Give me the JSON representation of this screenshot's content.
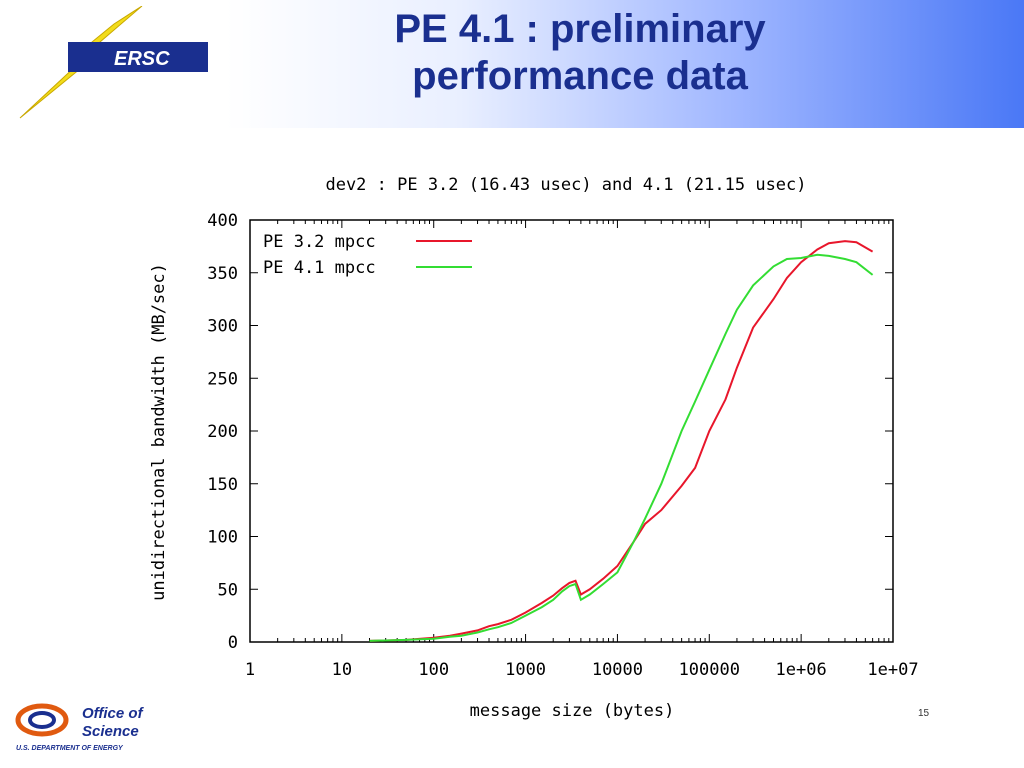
{
  "slide": {
    "title_line1": "PE 4.1 : preliminary",
    "title_line2": "performance data",
    "nersc_logo_text": "ERSC",
    "office_logo_line1": "Office of",
    "office_logo_line2": "Science",
    "office_logo_line3": "U.S. DEPARTMENT OF ENERGY",
    "page_number": "15"
  },
  "colors": {
    "title": "#1a2f8f",
    "pe32": "#e8162b",
    "pe41": "#33dd33"
  },
  "chart_data": {
    "type": "line",
    "title": "dev2 : PE 3.2 (16.43 usec) and 4.1 (21.15 usec)",
    "xlabel": "message size (bytes)",
    "ylabel": "unidirectional bandwidth (MB/sec)",
    "xscale": "log",
    "xlim": [
      1,
      10000000
    ],
    "ylim": [
      0,
      400
    ],
    "xticks": [
      1,
      10,
      100,
      1000,
      10000,
      100000,
      1000000,
      10000000
    ],
    "xtick_labels": [
      "1",
      "10",
      "100",
      "1000",
      "10000",
      "100000",
      "1e+06",
      "1e+07"
    ],
    "yticks": [
      0,
      50,
      100,
      150,
      200,
      250,
      300,
      350,
      400
    ],
    "ytick_labels": [
      "0",
      "50",
      "100",
      "150",
      "200",
      "250",
      "300",
      "350",
      "400"
    ],
    "legend_position": "top-left",
    "grid": false,
    "series": [
      {
        "name": "PE 3.2 mpcc",
        "color": "#e8162b",
        "x": [
          20,
          50,
          100,
          150,
          200,
          300,
          400,
          500,
          700,
          1000,
          1500,
          2000,
          2500,
          3000,
          3500,
          4000,
          5000,
          7000,
          10000,
          15000,
          20000,
          30000,
          50000,
          70000,
          100000,
          150000,
          200000,
          300000,
          500000,
          700000,
          1000000,
          1500000,
          2000000,
          3000000,
          4000000,
          6000000
        ],
        "y": [
          1,
          2,
          4,
          6,
          8,
          11,
          15,
          17,
          21,
          28,
          37,
          44,
          51,
          56,
          58,
          45,
          50,
          60,
          72,
          95,
          112,
          125,
          148,
          165,
          200,
          230,
          260,
          298,
          325,
          345,
          360,
          372,
          378,
          380,
          379,
          370
        ]
      },
      {
        "name": "PE 4.1 mpcc",
        "color": "#33dd33",
        "x": [
          20,
          50,
          100,
          150,
          200,
          300,
          400,
          500,
          700,
          1000,
          1500,
          2000,
          2500,
          3000,
          3500,
          4000,
          5000,
          7000,
          10000,
          15000,
          20000,
          30000,
          50000,
          70000,
          100000,
          150000,
          200000,
          300000,
          500000,
          700000,
          1000000,
          1500000,
          2000000,
          3000000,
          4000000,
          6000000
        ],
        "y": [
          1,
          2,
          3,
          5,
          6,
          9,
          12,
          14,
          18,
          25,
          33,
          40,
          48,
          53,
          55,
          40,
          45,
          55,
          66,
          95,
          117,
          150,
          200,
          228,
          258,
          292,
          315,
          338,
          356,
          363,
          364,
          367,
          366,
          363,
          360,
          348
        ]
      }
    ]
  }
}
